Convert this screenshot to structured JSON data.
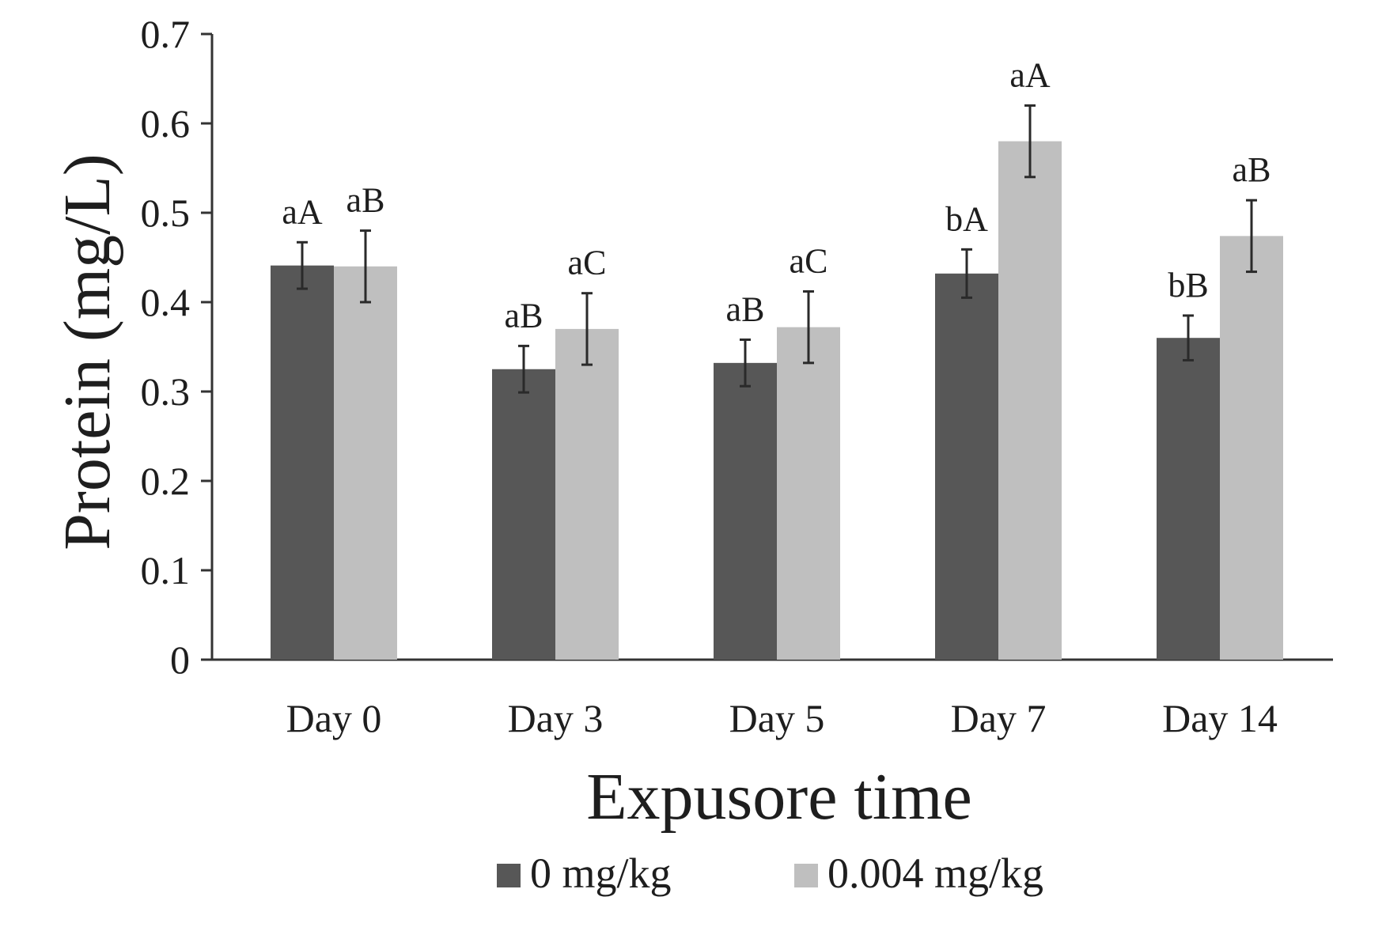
{
  "chart_data": {
    "type": "bar",
    "title": "",
    "xlabel": "Expusore time",
    "ylabel": "Protein (mg/L)",
    "ylim": [
      0,
      0.7
    ],
    "yticks": [
      "0",
      "0.1",
      "0.2",
      "0.3",
      "0.4",
      "0.5",
      "0.6",
      "0.7"
    ],
    "grid": false,
    "legend_position": "bottom",
    "categories": [
      "Day 0",
      "Day 3",
      "Day 5",
      "Day 7",
      "Day 14"
    ],
    "series": [
      {
        "name": "0 mg/kg",
        "color": "#575757",
        "values": [
          0.441,
          0.325,
          0.332,
          0.432,
          0.36
        ],
        "errors": [
          0.026,
          0.026,
          0.026,
          0.027,
          0.025
        ],
        "labels": [
          "aA",
          "aB",
          "aB",
          "bA",
          "bB"
        ]
      },
      {
        "name": "0.004 mg/kg",
        "color": "#bfbfbf",
        "values": [
          0.44,
          0.37,
          0.372,
          0.58,
          0.474
        ],
        "errors": [
          0.04,
          0.04,
          0.04,
          0.04,
          0.04
        ],
        "labels": [
          "aB",
          "aC",
          "aC",
          "aA",
          "aB"
        ]
      }
    ]
  }
}
